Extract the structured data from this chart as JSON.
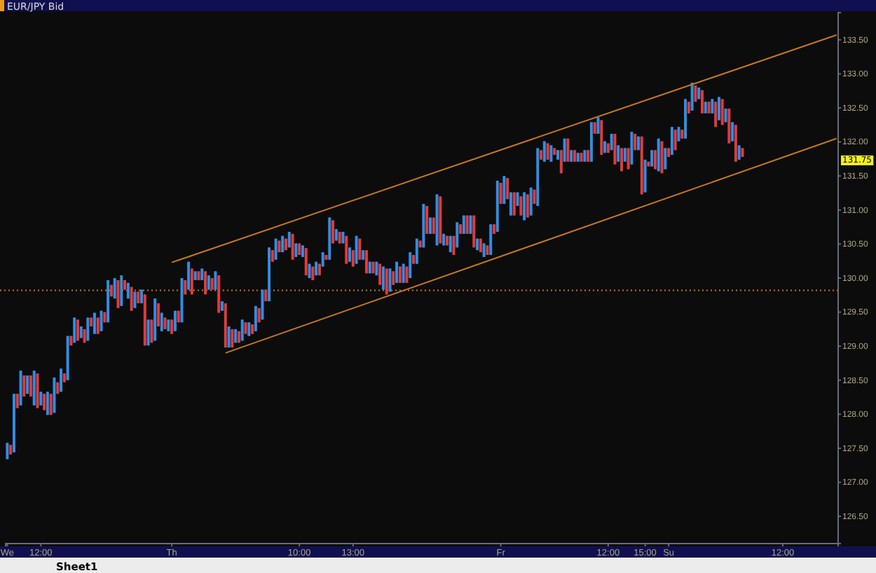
{
  "chart_data": {
    "type": "candlestick",
    "title": "EUR/JPY Bid",
    "categories": [
      "We",
      null,
      null,
      null,
      null,
      null,
      null,
      null,
      null,
      null,
      "12:00",
      null,
      null,
      null,
      null,
      null,
      null,
      null,
      null,
      null,
      null,
      null,
      null,
      null,
      null,
      null,
      null,
      null,
      null,
      null,
      null,
      null,
      null,
      null,
      null,
      null,
      null,
      null,
      null,
      null,
      null,
      null,
      null,
      null,
      null,
      null,
      null,
      null,
      null,
      "Th",
      null,
      null,
      null,
      null,
      null,
      null,
      null,
      null,
      null,
      null,
      null,
      null,
      null,
      null,
      null,
      null,
      null,
      null,
      null,
      null,
      null,
      null,
      null,
      null,
      null,
      null,
      null,
      null,
      null,
      null,
      null,
      null,
      null,
      null,
      null,
      null,
      null,
      "10:00",
      null,
      null,
      null,
      null,
      null,
      null,
      null,
      null,
      null,
      null,
      null,
      null,
      null,
      null,
      null,
      "13:00",
      null,
      null,
      null,
      null,
      null,
      null,
      null,
      null,
      null,
      null,
      null,
      null,
      null,
      null,
      null,
      null,
      null,
      null,
      null,
      null,
      null,
      null,
      null,
      null,
      null,
      null,
      null,
      null,
      null,
      null,
      null,
      null,
      null,
      null,
      null,
      null,
      null,
      null,
      null,
      null,
      null,
      null,
      null,
      "Fr",
      null,
      null,
      null,
      null,
      null,
      null,
      null,
      null,
      null,
      null,
      null,
      null,
      null,
      null,
      null,
      null,
      null,
      null,
      null,
      null,
      null,
      null,
      null,
      null,
      null,
      null,
      null,
      null,
      null,
      null,
      null,
      "12:00",
      null,
      null,
      null,
      null,
      null,
      null,
      null,
      null,
      null,
      null,
      "15:00",
      null,
      null,
      null,
      null,
      null,
      null,
      "Su",
      null,
      null,
      null,
      null,
      null,
      null,
      null,
      null,
      null,
      null,
      null,
      null,
      null,
      null,
      null,
      null,
      null,
      null,
      null,
      null,
      null,
      null,
      null,
      null,
      null,
      null,
      null,
      null,
      null,
      null,
      null,
      null,
      null,
      "12:00",
      null,
      null,
      null,
      null,
      null,
      null,
      null,
      null,
      null,
      null,
      null,
      null,
      null,
      null,
      null,
      null
    ],
    "ohlc": [
      [
        127.34,
        127.58,
        127.34,
        127.58
      ],
      [
        127.55,
        127.55,
        127.41,
        127.41
      ],
      [
        127.44,
        128.3,
        127.44,
        128.3
      ],
      [
        128.3,
        128.3,
        128.09,
        128.09
      ],
      [
        128.13,
        128.64,
        128.13,
        128.64
      ],
      [
        128.57,
        128.57,
        128.26,
        128.26
      ],
      [
        128.3,
        128.57,
        128.3,
        128.57
      ],
      [
        128.57,
        128.57,
        128.26,
        128.26
      ],
      [
        128.13,
        128.64,
        128.13,
        128.64
      ],
      [
        128.6,
        128.6,
        128.09,
        128.09
      ],
      [
        128.13,
        128.33,
        128.13,
        128.33
      ],
      [
        128.3,
        128.3,
        128.06,
        128.06
      ],
      [
        127.99,
        128.33,
        127.99,
        128.33
      ],
      [
        128.3,
        128.3,
        127.99,
        127.99
      ],
      [
        128.02,
        128.54,
        128.02,
        128.54
      ],
      [
        128.47,
        128.47,
        128.3,
        128.3
      ],
      [
        128.33,
        128.67,
        128.33,
        128.67
      ],
      [
        128.6,
        128.6,
        128.47,
        128.47
      ],
      [
        128.5,
        129.15,
        128.5,
        129.15
      ],
      [
        129.15,
        129.15,
        129.01,
        129.01
      ],
      [
        129.05,
        129.42,
        129.05,
        129.42
      ],
      [
        129.39,
        129.39,
        129.08,
        129.08
      ],
      [
        129.12,
        129.29,
        129.12,
        129.29
      ],
      [
        129.25,
        129.25,
        129.05,
        129.05
      ],
      [
        129.08,
        129.42,
        129.08,
        129.42
      ],
      [
        129.42,
        129.42,
        129.29,
        129.29
      ],
      [
        129.18,
        129.49,
        129.18,
        129.49
      ],
      [
        129.42,
        129.42,
        129.18,
        129.18
      ],
      [
        129.22,
        129.52,
        129.22,
        129.52
      ],
      [
        129.5,
        129.5,
        129.35,
        129.35
      ],
      [
        129.35,
        129.97,
        129.35,
        129.97
      ],
      [
        129.9,
        129.9,
        129.73,
        129.73
      ],
      [
        129.7,
        130.0,
        129.7,
        130.0
      ],
      [
        129.97,
        129.97,
        129.56,
        129.56
      ],
      [
        129.59,
        130.04,
        129.59,
        130.04
      ],
      [
        129.97,
        129.97,
        129.83,
        129.83
      ],
      [
        129.7,
        129.93,
        129.7,
        129.93
      ],
      [
        129.87,
        129.87,
        129.52,
        129.52
      ],
      [
        129.56,
        129.8,
        129.56,
        129.8
      ],
      [
        129.8,
        129.8,
        129.63,
        129.63
      ],
      [
        129.63,
        129.83,
        129.63,
        129.83
      ],
      [
        129.76,
        129.76,
        129.01,
        129.01
      ],
      [
        129.01,
        129.39,
        129.01,
        129.39
      ],
      [
        129.39,
        129.39,
        129.05,
        129.05
      ],
      [
        129.08,
        129.7,
        129.08,
        129.7
      ],
      [
        129.63,
        129.63,
        129.29,
        129.29
      ],
      [
        129.22,
        129.49,
        129.22,
        129.49
      ],
      [
        129.42,
        129.42,
        129.25,
        129.25
      ],
      [
        129.22,
        129.39,
        129.22,
        129.39
      ],
      [
        129.39,
        129.39,
        129.18,
        129.18
      ],
      [
        129.22,
        129.52,
        129.22,
        129.52
      ],
      [
        129.52,
        129.52,
        129.35,
        129.35
      ],
      [
        129.35,
        130.0,
        129.35,
        130.0
      ],
      [
        129.97,
        129.97,
        129.76,
        129.76
      ],
      [
        129.83,
        130.24,
        129.83,
        130.24
      ],
      [
        130.14,
        130.14,
        129.76,
        129.76
      ],
      [
        129.97,
        130.1,
        129.97,
        130.1
      ],
      [
        130.1,
        130.1,
        129.97,
        129.97
      ],
      [
        129.97,
        130.14,
        129.97,
        130.14
      ],
      [
        130.1,
        130.1,
        129.76,
        129.76
      ],
      [
        129.83,
        130.04,
        129.83,
        130.04
      ],
      [
        130.0,
        130.0,
        129.83,
        129.83
      ],
      [
        129.83,
        130.1,
        129.83,
        130.1
      ],
      [
        130.04,
        130.04,
        129.49,
        129.49
      ],
      [
        129.52,
        129.66,
        129.52,
        129.66
      ],
      [
        129.63,
        129.63,
        128.98,
        128.98
      ],
      [
        128.98,
        129.29,
        128.98,
        129.29
      ],
      [
        129.25,
        129.25,
        128.98,
        128.98
      ],
      [
        129.05,
        129.25,
        129.05,
        129.25
      ],
      [
        129.22,
        129.22,
        129.05,
        129.05
      ],
      [
        129.08,
        129.39,
        129.08,
        129.39
      ],
      [
        129.35,
        129.35,
        129.18,
        129.18
      ],
      [
        129.15,
        129.35,
        129.15,
        129.35
      ],
      [
        129.32,
        129.32,
        129.18,
        129.18
      ],
      [
        129.22,
        129.59,
        129.22,
        129.59
      ],
      [
        129.56,
        129.56,
        129.35,
        129.35
      ],
      [
        129.39,
        129.83,
        129.39,
        129.83
      ],
      [
        129.83,
        129.83,
        129.66,
        129.66
      ],
      [
        129.66,
        130.45,
        129.66,
        130.45
      ],
      [
        130.41,
        130.41,
        130.24,
        130.24
      ],
      [
        130.27,
        130.58,
        130.27,
        130.58
      ],
      [
        130.55,
        130.55,
        130.38,
        130.38
      ],
      [
        130.38,
        130.62,
        130.38,
        130.62
      ],
      [
        130.58,
        130.58,
        130.41,
        130.41
      ],
      [
        130.45,
        130.68,
        130.45,
        130.68
      ],
      [
        130.65,
        130.65,
        130.27,
        130.27
      ],
      [
        130.31,
        130.51,
        130.31,
        130.51
      ],
      [
        130.51,
        130.51,
        130.34,
        130.34
      ],
      [
        130.31,
        130.48,
        130.31,
        130.48
      ],
      [
        130.44,
        130.44,
        130.04,
        130.04
      ],
      [
        130.0,
        130.21,
        130.0,
        130.21
      ],
      [
        130.17,
        130.17,
        129.97,
        129.97
      ],
      [
        130.04,
        130.24,
        130.04,
        130.24
      ],
      [
        130.21,
        130.21,
        130.04,
        130.04
      ],
      [
        130.17,
        130.38,
        130.17,
        130.38
      ],
      [
        130.34,
        130.34,
        130.27,
        130.27
      ],
      [
        130.27,
        130.89,
        130.27,
        130.89
      ],
      [
        130.85,
        130.85,
        130.51,
        130.51
      ],
      [
        130.55,
        130.72,
        130.55,
        130.72
      ],
      [
        130.68,
        130.68,
        130.51,
        130.51
      ],
      [
        130.51,
        130.68,
        130.51,
        130.68
      ],
      [
        130.62,
        130.62,
        130.21,
        130.21
      ],
      [
        130.24,
        130.45,
        130.24,
        130.45
      ],
      [
        130.41,
        130.41,
        130.17,
        130.17
      ],
      [
        130.21,
        130.62,
        130.21,
        130.62
      ],
      [
        130.58,
        130.58,
        130.27,
        130.27
      ],
      [
        130.27,
        130.41,
        130.27,
        130.41
      ],
      [
        130.41,
        130.41,
        130.07,
        130.07
      ],
      [
        130.07,
        130.24,
        130.07,
        130.24
      ],
      [
        130.24,
        130.24,
        130.07,
        130.07
      ],
      [
        130.04,
        130.24,
        130.04,
        130.24
      ],
      [
        130.21,
        130.21,
        129.9,
        129.9
      ],
      [
        129.83,
        130.17,
        129.83,
        130.17
      ],
      [
        130.14,
        130.14,
        129.76,
        129.76
      ],
      [
        129.8,
        130.14,
        129.8,
        130.14
      ],
      [
        130.1,
        130.1,
        129.9,
        129.9
      ],
      [
        129.93,
        130.24,
        129.93,
        130.24
      ],
      [
        130.17,
        130.17,
        129.93,
        129.93
      ],
      [
        129.93,
        130.21,
        129.93,
        130.21
      ],
      [
        130.17,
        130.17,
        129.93,
        129.93
      ],
      [
        130.0,
        130.38,
        130.0,
        130.38
      ],
      [
        130.34,
        130.34,
        130.21,
        130.21
      ],
      [
        130.21,
        130.58,
        130.21,
        130.58
      ],
      [
        130.55,
        130.55,
        130.45,
        130.45
      ],
      [
        130.45,
        131.09,
        130.45,
        131.09
      ],
      [
        131.06,
        131.06,
        130.65,
        130.65
      ],
      [
        130.65,
        130.89,
        130.65,
        130.89
      ],
      [
        130.89,
        130.89,
        130.65,
        130.65
      ],
      [
        130.48,
        131.23,
        130.48,
        131.23
      ],
      [
        131.2,
        131.2,
        130.51,
        130.51
      ],
      [
        130.48,
        130.65,
        130.48,
        130.65
      ],
      [
        130.62,
        130.62,
        130.48,
        130.48
      ],
      [
        130.38,
        130.62,
        130.38,
        130.62
      ],
      [
        130.62,
        130.62,
        130.34,
        130.34
      ],
      [
        130.45,
        130.82,
        130.45,
        130.82
      ],
      [
        130.79,
        130.79,
        130.65,
        130.65
      ],
      [
        130.65,
        130.92,
        130.65,
        130.92
      ],
      [
        130.92,
        130.92,
        130.65,
        130.65
      ],
      [
        130.65,
        130.92,
        130.65,
        130.92
      ],
      [
        130.92,
        130.92,
        130.45,
        130.45
      ],
      [
        130.41,
        130.58,
        130.41,
        130.58
      ],
      [
        130.58,
        130.58,
        130.38,
        130.38
      ],
      [
        130.31,
        130.51,
        130.31,
        130.51
      ],
      [
        130.48,
        130.48,
        130.34,
        130.34
      ],
      [
        130.34,
        130.79,
        130.34,
        130.79
      ],
      [
        130.79,
        130.79,
        130.65,
        130.65
      ],
      [
        130.68,
        131.43,
        130.68,
        131.43
      ],
      [
        131.4,
        131.4,
        131.09,
        131.09
      ],
      [
        131.09,
        131.5,
        131.09,
        131.5
      ],
      [
        131.47,
        131.47,
        131.16,
        131.16
      ],
      [
        130.92,
        131.26,
        130.92,
        131.26
      ],
      [
        131.26,
        131.26,
        130.92,
        130.92
      ],
      [
        131.06,
        131.26,
        131.06,
        131.26
      ],
      [
        131.2,
        131.2,
        130.92,
        130.92
      ],
      [
        130.85,
        131.26,
        130.85,
        131.26
      ],
      [
        131.23,
        131.23,
        130.89,
        130.89
      ],
      [
        130.92,
        131.33,
        130.92,
        131.33
      ],
      [
        131.3,
        131.3,
        131.09,
        131.09
      ],
      [
        131.06,
        131.91,
        131.06,
        131.91
      ],
      [
        131.88,
        131.88,
        131.74,
        131.74
      ],
      [
        131.71,
        132.01,
        131.71,
        132.01
      ],
      [
        131.98,
        131.98,
        131.74,
        131.74
      ],
      [
        131.71,
        131.95,
        131.71,
        131.95
      ],
      [
        131.91,
        131.91,
        131.81,
        131.81
      ],
      [
        131.74,
        131.88,
        131.74,
        131.88
      ],
      [
        131.88,
        131.88,
        131.54,
        131.54
      ],
      [
        131.71,
        132.05,
        131.71,
        132.05
      ],
      [
        132.05,
        132.05,
        131.71,
        131.71
      ],
      [
        131.71,
        131.88,
        131.71,
        131.88
      ],
      [
        131.88,
        131.88,
        131.71,
        131.71
      ],
      [
        131.71,
        131.84,
        131.71,
        131.84
      ],
      [
        131.84,
        131.84,
        131.71,
        131.71
      ],
      [
        131.71,
        131.88,
        131.71,
        131.88
      ],
      [
        131.88,
        131.88,
        131.71,
        131.71
      ],
      [
        131.71,
        132.29,
        131.71,
        132.29
      ],
      [
        132.29,
        132.29,
        132.12,
        132.12
      ],
      [
        132.12,
        132.36,
        132.12,
        132.36
      ],
      [
        132.32,
        132.32,
        131.81,
        131.81
      ],
      [
        131.84,
        132.01,
        131.84,
        132.01
      ],
      [
        131.98,
        131.98,
        131.84,
        131.84
      ],
      [
        131.88,
        132.12,
        131.88,
        132.12
      ],
      [
        132.12,
        132.12,
        131.67,
        131.67
      ],
      [
        131.71,
        131.95,
        131.71,
        131.95
      ],
      [
        131.91,
        131.91,
        131.57,
        131.57
      ],
      [
        131.71,
        131.91,
        131.71,
        131.91
      ],
      [
        131.91,
        131.91,
        131.6,
        131.6
      ],
      [
        131.67,
        132.15,
        131.67,
        132.15
      ],
      [
        132.12,
        132.12,
        131.88,
        131.88
      ],
      [
        131.88,
        132.08,
        131.88,
        132.08
      ],
      [
        132.08,
        132.08,
        131.23,
        131.23
      ],
      [
        131.26,
        131.74,
        131.26,
        131.74
      ],
      [
        131.71,
        131.71,
        131.64,
        131.64
      ],
      [
        131.64,
        131.88,
        131.64,
        131.88
      ],
      [
        131.88,
        131.88,
        131.6,
        131.6
      ],
      [
        131.57,
        132.05,
        131.57,
        132.05
      ],
      [
        132.01,
        132.01,
        131.54,
        131.54
      ],
      [
        131.6,
        131.91,
        131.6,
        131.91
      ],
      [
        131.91,
        131.91,
        131.78,
        131.78
      ],
      [
        131.81,
        132.22,
        131.81,
        132.22
      ],
      [
        132.18,
        132.18,
        131.88,
        131.88
      ],
      [
        132.01,
        132.22,
        132.01,
        132.22
      ],
      [
        132.18,
        132.18,
        132.05,
        132.05
      ],
      [
        132.05,
        132.63,
        132.05,
        132.63
      ],
      [
        132.59,
        132.59,
        132.42,
        132.42
      ],
      [
        132.46,
        132.87,
        132.46,
        132.87
      ],
      [
        132.83,
        132.83,
        132.59,
        132.59
      ],
      [
        132.63,
        132.8,
        132.63,
        132.8
      ],
      [
        132.76,
        132.76,
        132.42,
        132.42
      ],
      [
        132.42,
        132.59,
        132.42,
        132.59
      ],
      [
        132.59,
        132.59,
        132.42,
        132.42
      ],
      [
        132.42,
        132.63,
        132.42,
        132.63
      ],
      [
        132.59,
        132.59,
        132.22,
        132.22
      ],
      [
        132.32,
        132.66,
        132.32,
        132.66
      ],
      [
        132.63,
        132.63,
        132.25,
        132.25
      ],
      [
        132.29,
        132.49,
        132.29,
        132.49
      ],
      [
        132.49,
        132.49,
        131.98,
        131.98
      ],
      [
        132.01,
        132.29,
        132.01,
        132.29
      ],
      [
        132.25,
        132.25,
        131.71,
        131.71
      ],
      [
        131.74,
        131.95,
        131.74,
        131.95
      ],
      [
        131.91,
        131.91,
        131.78,
        131.78
      ],
      null,
      null,
      null,
      null,
      null,
      null,
      null,
      null,
      null,
      null,
      null,
      null,
      null,
      null,
      null,
      null,
      null,
      null,
      null,
      null,
      null,
      null,
      null,
      null,
      null,
      null,
      null,
      null
    ],
    "colors": [
      "#2e8ee6",
      "#e23a3a",
      "#2e8ee6",
      "#e23a3a",
      "#2e8ee6",
      "#e23a3a",
      "#2e8ee6",
      "#e23a3a",
      "#2e8ee6",
      "#e23a3a",
      "#2e8ee6",
      "#e23a3a",
      "#2e8ee6",
      "#e23a3a",
      "#2e8ee6",
      "#e23a3a",
      "#2e8ee6",
      "#e23a3a",
      "#2e8ee6",
      "#e23a3a",
      "#2e8ee6",
      "#e23a3a",
      "#2e8ee6",
      "#e23a3a",
      "#2e8ee6",
      "#e23a3a",
      "#2e8ee6",
      "#e23a3a",
      "#2e8ee6",
      "#e23a3a",
      "#2e8ee6",
      "#e23a3a",
      "#2e8ee6",
      "#e23a3a",
      "#2e8ee6",
      "#e23a3a",
      "#2e8ee6",
      "#e23a3a",
      "#2e8ee6",
      "#e23a3a",
      "#2e8ee6",
      "#e23a3a",
      "#2e8ee6",
      "#e23a3a",
      "#2e8ee6",
      "#e23a3a",
      "#2e8ee6",
      "#e23a3a",
      "#2e8ee6",
      "#e23a3a",
      "#2e8ee6",
      "#e23a3a",
      "#2e8ee6",
      "#e23a3a",
      "#2e8ee6",
      "#e23a3a",
      "#2e8ee6",
      "#e23a3a",
      "#2e8ee6",
      "#e23a3a",
      "#2e8ee6",
      "#e23a3a",
      "#2e8ee6",
      "#e23a3a",
      "#2e8ee6",
      "#e23a3a",
      "#2e8ee6",
      "#e23a3a",
      "#2e8ee6",
      "#e23a3a",
      "#2e8ee6",
      "#e23a3a",
      "#2e8ee6",
      "#e23a3a",
      "#2e8ee6",
      "#e23a3a",
      "#2e8ee6",
      "#e23a3a",
      "#2e8ee6",
      "#e23a3a",
      "#2e8ee6",
      "#e23a3a",
      "#2e8ee6",
      "#e23a3a",
      "#2e8ee6",
      "#e23a3a",
      "#2e8ee6",
      "#e23a3a",
      "#2e8ee6",
      "#e23a3a",
      "#2e8ee6",
      "#e23a3a",
      "#2e8ee6",
      "#e23a3a",
      "#2e8ee6",
      "#e23a3a",
      "#2e8ee6",
      "#e23a3a",
      "#2e8ee6",
      "#e23a3a",
      "#2e8ee6",
      "#e23a3a",
      "#2e8ee6",
      "#e23a3a",
      "#2e8ee6",
      "#e23a3a",
      "#2e8ee6",
      "#e23a3a",
      "#2e8ee6",
      "#e23a3a",
      "#2e8ee6",
      "#e23a3a",
      "#2e8ee6",
      "#e23a3a",
      "#2e8ee6",
      "#e23a3a",
      "#2e8ee6",
      "#e23a3a",
      "#2e8ee6",
      "#e23a3a",
      "#2e8ee6",
      "#e23a3a",
      "#2e8ee6",
      "#e23a3a",
      "#2e8ee6",
      "#e23a3a",
      "#2e8ee6",
      "#e23a3a",
      "#2e8ee6",
      "#e23a3a",
      "#2e8ee6",
      "#e23a3a",
      "#2e8ee6",
      "#e23a3a",
      "#2e8ee6",
      "#e23a3a",
      "#2e8ee6",
      "#e23a3a",
      "#2e8ee6",
      "#e23a3a",
      "#2e8ee6",
      "#e23a3a",
      "#2e8ee6",
      "#e23a3a",
      "#2e8ee6",
      "#e23a3a",
      "#2e8ee6",
      "#e23a3a",
      "#2e8ee6",
      "#e23a3a",
      "#2e8ee6",
      "#e23a3a",
      "#2e8ee6",
      "#e23a3a",
      "#2e8ee6",
      "#e23a3a",
      "#2e8ee6",
      "#e23a3a",
      "#2e8ee6",
      "#e23a3a",
      "#2e8ee6",
      "#e23a3a",
      "#2e8ee6",
      "#e23a3a",
      "#2e8ee6",
      "#e23a3a",
      "#2e8ee6",
      "#e23a3a",
      "#2e8ee6",
      "#e23a3a",
      "#2e8ee6",
      "#e23a3a",
      "#2e8ee6",
      "#e23a3a",
      "#2e8ee6",
      "#e23a3a",
      "#2e8ee6",
      "#e23a3a",
      "#2e8ee6",
      "#e23a3a",
      "#2e8ee6",
      "#e23a3a",
      "#2e8ee6",
      "#e23a3a",
      "#2e8ee6",
      "#e23a3a",
      "#2e8ee6",
      "#e23a3a",
      "#2e8ee6",
      "#e23a3a",
      "#2e8ee6",
      "#e23a3a",
      "#2e8ee6",
      "#e23a3a",
      "#2e8ee6",
      "#e23a3a",
      "#2e8ee6",
      "#e23a3a",
      "#2e8ee6",
      "#e23a3a",
      "#2e8ee6",
      "#e23a3a",
      "#2e8ee6",
      "#e23a3a",
      "#2e8ee6",
      "#e23a3a",
      "#2e8ee6",
      "#e23a3a",
      "#2e8ee6",
      "#e23a3a",
      "#2e8ee6",
      "#e23a3a",
      "#2e8ee6",
      "#e23a3a",
      "#2e8ee6",
      "#e23a3a",
      "#2e8ee6",
      "#e23a3a",
      "#2e8ee6",
      "#e23a3a",
      null,
      null,
      null,
      null,
      null,
      null,
      null,
      null,
      null,
      null,
      null,
      null,
      null,
      null,
      null,
      null,
      null,
      null,
      null,
      null,
      null,
      null,
      null,
      null,
      null,
      null,
      null,
      null
    ],
    "series": [
      {
        "type": "line",
        "color": "#c8781e",
        "values": [
          null,
          null,
          null,
          null,
          null,
          null,
          null,
          null,
          null,
          null,
          null,
          null,
          null,
          null,
          null,
          null,
          null,
          null,
          null,
          null,
          null,
          null,
          null,
          null,
          null,
          null,
          null,
          null,
          null,
          null,
          null,
          null,
          null,
          null,
          null,
          null,
          null,
          null,
          null,
          null,
          null,
          null,
          null,
          null,
          null,
          null,
          null,
          null,
          null,
          130.23,
          null,
          null,
          null,
          null,
          null,
          null,
          null,
          null,
          null,
          null,
          null,
          null,
          null,
          null,
          null,
          null,
          null,
          null,
          null,
          null,
          null,
          null,
          null,
          null,
          null,
          null,
          null,
          null,
          null,
          null,
          null,
          null,
          null,
          null,
          null,
          null,
          null,
          null,
          null,
          null,
          null,
          null,
          null,
          null,
          null,
          null,
          null,
          null,
          null,
          null,
          null,
          null,
          null,
          null,
          null,
          null,
          null,
          null,
          null,
          null,
          null,
          null,
          null,
          null,
          null,
          null,
          null,
          null,
          null,
          null,
          null,
          null,
          null,
          null,
          null,
          null,
          null,
          null,
          null,
          null,
          null,
          null,
          null,
          null,
          null,
          null,
          null,
          null,
          null,
          null,
          null,
          null,
          null,
          null,
          null,
          null,
          null,
          null,
          null,
          null,
          null,
          null,
          null,
          null,
          null,
          null,
          null,
          null,
          null,
          null,
          null,
          null,
          null,
          null,
          null,
          null,
          null,
          null,
          null,
          null,
          null,
          null,
          null,
          null,
          null,
          null,
          null,
          null,
          null,
          null,
          null,
          null,
          null,
          null,
          null,
          null,
          null,
          null,
          null,
          null,
          null,
          null,
          null,
          null,
          null,
          null,
          null,
          null,
          null,
          null,
          null,
          null,
          null,
          null,
          null,
          null,
          null,
          null,
          null,
          null,
          null,
          null,
          null,
          null,
          null,
          null,
          null,
          null,
          null,
          null,
          null,
          null,
          null,
          null,
          null,
          null,
          null,
          null,
          null,
          null,
          null,
          null,
          null,
          null,
          null,
          null,
          null,
          null,
          null,
          null,
          null,
          null,
          null,
          null,
          null,
          null,
          null,
          133.57
        ]
      },
      {
        "type": "line",
        "color": "#c8781e",
        "values": [
          null,
          null,
          null,
          null,
          null,
          null,
          null,
          null,
          null,
          null,
          null,
          null,
          null,
          null,
          null,
          null,
          null,
          null,
          null,
          null,
          null,
          null,
          null,
          null,
          null,
          null,
          null,
          null,
          null,
          null,
          null,
          null,
          null,
          null,
          null,
          null,
          null,
          null,
          null,
          null,
          null,
          null,
          null,
          null,
          null,
          null,
          null,
          null,
          null,
          null,
          null,
          null,
          null,
          null,
          null,
          null,
          null,
          null,
          null,
          null,
          null,
          null,
          null,
          null,
          null,
          128.9,
          null,
          null,
          null,
          null,
          null,
          null,
          null,
          null,
          null,
          null,
          null,
          null,
          null,
          null,
          null,
          null,
          null,
          null,
          null,
          null,
          null,
          null,
          null,
          null,
          null,
          null,
          null,
          null,
          null,
          null,
          null,
          null,
          null,
          null,
          null,
          null,
          null,
          null,
          null,
          null,
          null,
          null,
          null,
          null,
          null,
          null,
          null,
          null,
          null,
          null,
          null,
          null,
          null,
          null,
          null,
          null,
          null,
          null,
          null,
          null,
          null,
          null,
          null,
          null,
          null,
          null,
          null,
          null,
          null,
          null,
          null,
          null,
          null,
          null,
          null,
          null,
          null,
          null,
          null,
          null,
          null,
          null,
          null,
          null,
          null,
          null,
          null,
          null,
          null,
          null,
          null,
          null,
          null,
          null,
          null,
          null,
          null,
          null,
          null,
          null,
          null,
          null,
          null,
          null,
          null,
          null,
          null,
          null,
          null,
          null,
          null,
          null,
          null,
          null,
          null,
          null,
          null,
          null,
          null,
          null,
          null,
          null,
          null,
          null,
          null,
          null,
          null,
          null,
          null,
          null,
          null,
          null,
          null,
          null,
          null,
          null,
          null,
          null,
          null,
          null,
          null,
          null,
          null,
          null,
          null,
          null,
          null,
          null,
          null,
          null,
          null,
          null,
          null,
          null,
          null,
          null,
          null,
          null,
          null,
          null,
          null,
          null,
          null,
          null,
          null,
          null,
          null,
          null,
          null,
          null,
          null,
          null,
          null,
          null,
          null,
          null,
          null,
          null,
          null,
          null,
          null,
          132.05
        ]
      }
    ],
    "ref_lines": [
      {
        "axis": "y",
        "value": 129.82,
        "color": "#c8781e",
        "line_style": "dotted"
      }
    ],
    "ylim": [
      126.1,
      133.9
    ],
    "yticks": [
      {
        "value": 126.5,
        "label": "126.50"
      },
      {
        "value": 127,
        "label": "127.00"
      },
      {
        "value": 127.5,
        "label": "127.50"
      },
      {
        "value": 128,
        "label": "128.00"
      },
      {
        "value": 128.5,
        "label": "128.50"
      },
      {
        "value": 129,
        "label": "129.00"
      },
      {
        "value": 129.5,
        "label": "129.50"
      },
      {
        "value": 130,
        "label": "130.00"
      },
      {
        "value": 130.5,
        "label": "130.50"
      },
      {
        "value": 131,
        "label": "131.00"
      },
      {
        "value": 131.5,
        "label": "131.50"
      },
      {
        "value": 132,
        "label": "132.00"
      },
      {
        "value": 132.5,
        "label": "132.50"
      },
      {
        "value": 133,
        "label": "133.00"
      },
      {
        "value": 133.5,
        "label": "133.50"
      }
    ],
    "annotations": [
      {
        "text": "131.75",
        "y": 131.75
      },
      "Sheet1"
    ]
  }
}
